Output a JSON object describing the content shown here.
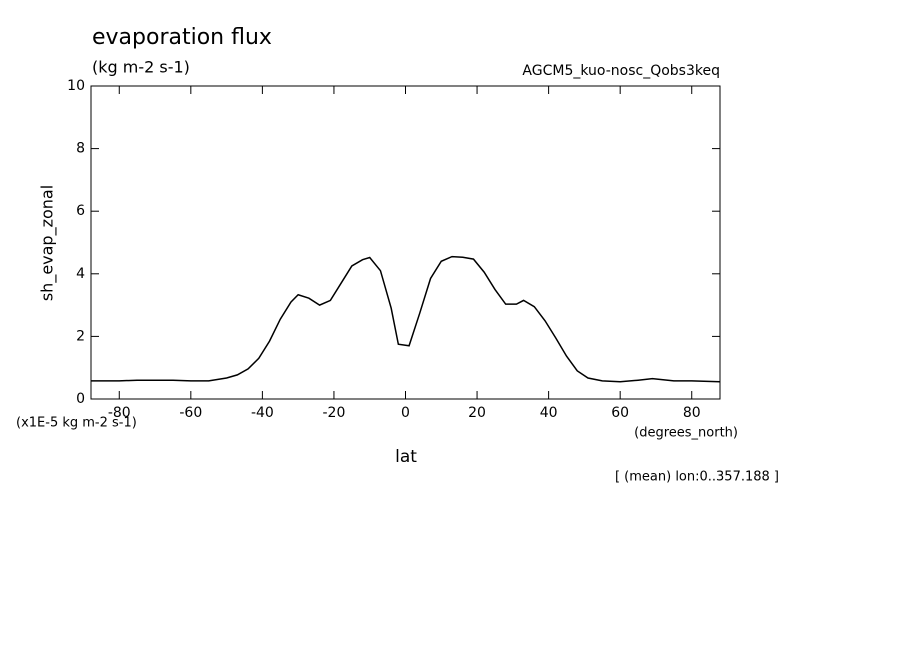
{
  "chart_data": {
    "type": "line",
    "title": "evaporation flux",
    "subtitle": "(kg m-2 s-1)",
    "dataset_label": "AGCM5_kuo-nosc_Qobs3keq",
    "y_label": "sh_evap_zonal",
    "y_units": "(x1E-5 kg m-2 s-1)",
    "x_label": "lat",
    "x_units": "(degrees_north)",
    "annotation": "[ (mean) lon:0..357.188 ]",
    "x": [
      -87.9,
      -80,
      -75,
      -70,
      -65,
      -60,
      -55,
      -50,
      -47,
      -44,
      -41,
      -38,
      -35,
      -32,
      -30,
      -27,
      -24,
      -21,
      -18,
      -15,
      -12,
      -10,
      -7,
      -4,
      -2,
      1,
      4,
      7,
      10,
      13,
      16,
      19,
      22,
      25,
      28,
      31,
      33,
      36,
      39,
      42,
      45,
      48,
      51,
      55,
      60,
      65,
      69,
      75,
      80,
      87.9
    ],
    "series": [
      {
        "name": "sh_evap_zonal",
        "color": "#000000",
        "values": [
          0.58,
          0.58,
          0.6,
          0.6,
          0.6,
          0.58,
          0.58,
          0.67,
          0.77,
          0.96,
          1.3,
          1.85,
          2.55,
          3.1,
          3.33,
          3.22,
          3.0,
          3.15,
          3.7,
          4.25,
          4.45,
          4.52,
          4.1,
          2.9,
          1.75,
          1.7,
          2.75,
          3.85,
          4.4,
          4.55,
          4.53,
          4.47,
          4.05,
          3.5,
          3.03,
          3.03,
          3.15,
          2.95,
          2.5,
          1.95,
          1.37,
          0.9,
          0.67,
          0.58,
          0.55,
          0.6,
          0.65,
          0.58,
          0.58,
          0.55
        ]
      }
    ],
    "xlim": [
      -87.9,
      87.9
    ],
    "xticks": [
      -80,
      -60,
      -40,
      -20,
      0,
      20,
      40,
      60,
      80
    ],
    "ylim": [
      0,
      10
    ],
    "yticks": [
      0,
      2,
      4,
      6,
      8,
      10
    ],
    "grid": false
  }
}
